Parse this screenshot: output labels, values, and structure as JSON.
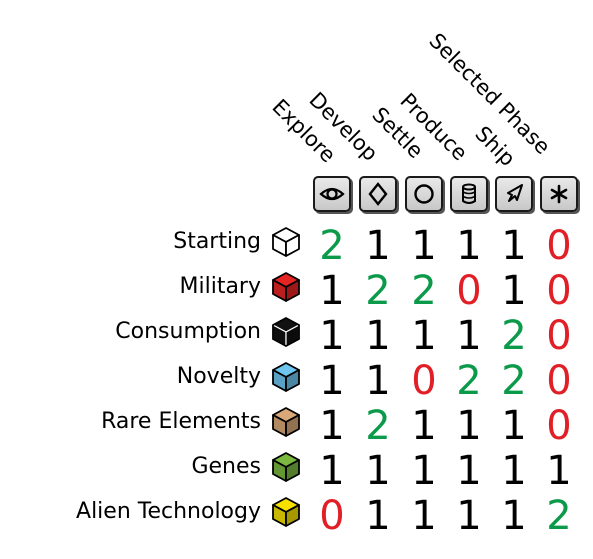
{
  "columns": [
    {
      "label": "Explore",
      "icon": "eye-icon"
    },
    {
      "label": "Develop",
      "icon": "diamond-icon"
    },
    {
      "label": "Settle",
      "icon": "circle-icon"
    },
    {
      "label": "Produce",
      "icon": "cylinder-icon"
    },
    {
      "label": "Ship",
      "icon": "rocket-icon"
    },
    {
      "label": "Selected Phase",
      "icon": "asterisk-icon"
    }
  ],
  "rows": [
    {
      "label": "Starting",
      "cube_color": "#ffffff",
      "values": [
        "2",
        "1",
        "1",
        "1",
        "1",
        "0"
      ]
    },
    {
      "label": "Military",
      "cube_color": "#e52424",
      "values": [
        "1",
        "2",
        "2",
        "0",
        "1",
        "0"
      ]
    },
    {
      "label": "Consumption",
      "cube_color": "#111111",
      "values": [
        "1",
        "1",
        "1",
        "1",
        "2",
        "0"
      ]
    },
    {
      "label": "Novelty",
      "cube_color": "#6ec6f0",
      "values": [
        "1",
        "1",
        "0",
        "2",
        "2",
        "0"
      ]
    },
    {
      "label": "Rare Elements",
      "cube_color": "#d8a878",
      "values": [
        "1",
        "2",
        "1",
        "1",
        "1",
        "0"
      ]
    },
    {
      "label": "Genes",
      "cube_color": "#7ab840",
      "values": [
        "1",
        "1",
        "1",
        "1",
        "1",
        "1"
      ]
    },
    {
      "label": "Alien Technology",
      "cube_color": "#f5e000",
      "values": [
        "0",
        "1",
        "1",
        "1",
        "1",
        "2"
      ]
    }
  ],
  "value_colors": {
    "0": "#e11f26",
    "1": "#000000",
    "2": "#0a9a4a"
  }
}
